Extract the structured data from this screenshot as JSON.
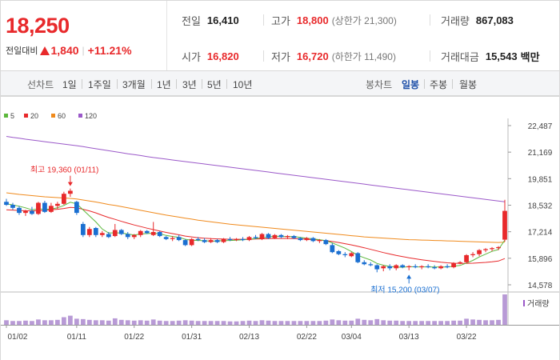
{
  "quote": {
    "current_price": "18,250",
    "change_label": "전일대비",
    "change_amount": "1,840",
    "change_percent": "+11.21%",
    "color_up": "#e8292b",
    "color_down": "#1a6fd1"
  },
  "stats": {
    "prev_close": {
      "label": "전일",
      "value": "16,410"
    },
    "high": {
      "label": "고가",
      "value": "18,800",
      "sub_label": "(상한가",
      "sub_value": "21,300)"
    },
    "volume": {
      "label": "거래량",
      "value": "867,083"
    },
    "open": {
      "label": "시가",
      "value": "16,820"
    },
    "low": {
      "label": "저가",
      "value": "16,720",
      "sub_label": "(하한가",
      "sub_value": "11,490)"
    },
    "turnover": {
      "label": "거래대금",
      "value": "15,543",
      "unit": "백만"
    }
  },
  "period_tabs": {
    "header": "선차트",
    "items": [
      "1일",
      "1주일",
      "3개월",
      "1년",
      "3년",
      "5년",
      "10년"
    ]
  },
  "candle_tabs": {
    "header": "봉차트",
    "items": [
      "일봉",
      "주봉",
      "월봉"
    ],
    "active": "일봉"
  },
  "chart_data": {
    "type": "candlestick",
    "title": "",
    "legend": [
      {
        "name": "5",
        "color": "#5cb83c"
      },
      {
        "name": "20",
        "color": "#e8292b"
      },
      {
        "name": "60",
        "color": "#f08a1c"
      },
      {
        "name": "120",
        "color": "#9b59c9"
      }
    ],
    "y_ticks": [
      "22,487",
      "21,169",
      "19,851",
      "18,532",
      "17,214",
      "15,896",
      "14,578"
    ],
    "ylim": [
      14578,
      22487
    ],
    "x_ticks": [
      "01/02",
      "01/11",
      "01/22",
      "01/31",
      "02/13",
      "02/22",
      "03/04",
      "03/13",
      "03/22"
    ],
    "volume_label": "거래량",
    "annotations": {
      "high": {
        "text": "최고 19,360 (01/11)",
        "value": 19360,
        "index": 10
      },
      "low": {
        "text": "최저 15,200 (03/07)",
        "value": 15200,
        "index": 63
      }
    },
    "candles": [
      {
        "o": 18700,
        "h": 18850,
        "l": 18500,
        "c": 18550
      },
      {
        "o": 18550,
        "h": 18650,
        "l": 18300,
        "c": 18400
      },
      {
        "o": 18400,
        "h": 18500,
        "l": 18050,
        "c": 18150
      },
      {
        "o": 18150,
        "h": 18300,
        "l": 18000,
        "c": 18250
      },
      {
        "o": 18250,
        "h": 18450,
        "l": 18050,
        "c": 18100
      },
      {
        "o": 18100,
        "h": 18700,
        "l": 18050,
        "c": 18650
      },
      {
        "o": 18650,
        "h": 18750,
        "l": 18150,
        "c": 18200
      },
      {
        "o": 18200,
        "h": 18650,
        "l": 18150,
        "c": 18500
      },
      {
        "o": 18500,
        "h": 18700,
        "l": 18350,
        "c": 18600
      },
      {
        "o": 18600,
        "h": 19200,
        "l": 18550,
        "c": 19100
      },
      {
        "o": 19100,
        "h": 19360,
        "l": 18950,
        "c": 19250
      },
      {
        "o": 18700,
        "h": 18750,
        "l": 18050,
        "c": 18150
      },
      {
        "o": 17600,
        "h": 17700,
        "l": 16950,
        "c": 17050
      },
      {
        "o": 17050,
        "h": 17450,
        "l": 16950,
        "c": 17350
      },
      {
        "o": 17400,
        "h": 17450,
        "l": 16950,
        "c": 17050
      },
      {
        "o": 17050,
        "h": 17250,
        "l": 16950,
        "c": 17150
      },
      {
        "o": 17100,
        "h": 17200,
        "l": 16900,
        "c": 16950
      },
      {
        "o": 17000,
        "h": 17600,
        "l": 16950,
        "c": 17300
      },
      {
        "o": 17300,
        "h": 17350,
        "l": 17050,
        "c": 17100
      },
      {
        "o": 17100,
        "h": 17200,
        "l": 16850,
        "c": 16950
      },
      {
        "o": 16950,
        "h": 17100,
        "l": 16850,
        "c": 17050
      },
      {
        "o": 17050,
        "h": 17300,
        "l": 16950,
        "c": 17250
      },
      {
        "o": 17250,
        "h": 17300,
        "l": 17100,
        "c": 17150
      },
      {
        "o": 17050,
        "h": 17700,
        "l": 17000,
        "c": 17200
      },
      {
        "o": 17200,
        "h": 17250,
        "l": 16950,
        "c": 17000
      },
      {
        "o": 16950,
        "h": 17000,
        "l": 16800,
        "c": 16850
      },
      {
        "o": 16850,
        "h": 17000,
        "l": 16750,
        "c": 16900
      },
      {
        "o": 16950,
        "h": 17050,
        "l": 16750,
        "c": 16800
      },
      {
        "o": 16800,
        "h": 16850,
        "l": 16500,
        "c": 16550
      },
      {
        "o": 16550,
        "h": 16900,
        "l": 16500,
        "c": 16850
      },
      {
        "o": 16850,
        "h": 16950,
        "l": 16750,
        "c": 16800
      },
      {
        "o": 16800,
        "h": 16900,
        "l": 16650,
        "c": 16700
      },
      {
        "o": 16700,
        "h": 16900,
        "l": 16650,
        "c": 16800
      },
      {
        "o": 16800,
        "h": 16850,
        "l": 16650,
        "c": 16700
      },
      {
        "o": 16700,
        "h": 16900,
        "l": 16650,
        "c": 16850
      },
      {
        "o": 16850,
        "h": 16950,
        "l": 16750,
        "c": 16800
      },
      {
        "o": 16800,
        "h": 16900,
        "l": 16750,
        "c": 16850
      },
      {
        "o": 16850,
        "h": 16950,
        "l": 16750,
        "c": 16800
      },
      {
        "o": 16800,
        "h": 17000,
        "l": 16750,
        "c": 16950
      },
      {
        "o": 16950,
        "h": 17050,
        "l": 16850,
        "c": 16900
      },
      {
        "o": 16850,
        "h": 17150,
        "l": 16800,
        "c": 17100
      },
      {
        "o": 17100,
        "h": 17150,
        "l": 16850,
        "c": 16900
      },
      {
        "o": 16900,
        "h": 17100,
        "l": 16850,
        "c": 17050
      },
      {
        "o": 17050,
        "h": 17100,
        "l": 16900,
        "c": 16950
      },
      {
        "o": 16950,
        "h": 17050,
        "l": 16850,
        "c": 17000
      },
      {
        "o": 17000,
        "h": 17050,
        "l": 16850,
        "c": 16900
      },
      {
        "o": 16900,
        "h": 16950,
        "l": 16750,
        "c": 16800
      },
      {
        "o": 16800,
        "h": 16950,
        "l": 16750,
        "c": 16900
      },
      {
        "o": 16900,
        "h": 16950,
        "l": 16700,
        "c": 16750
      },
      {
        "o": 16750,
        "h": 16850,
        "l": 16650,
        "c": 16800
      },
      {
        "o": 16800,
        "h": 16850,
        "l": 16550,
        "c": 16600
      },
      {
        "o": 16550,
        "h": 16650,
        "l": 16150,
        "c": 16200
      },
      {
        "o": 16250,
        "h": 16300,
        "l": 16050,
        "c": 16100
      },
      {
        "o": 16100,
        "h": 16200,
        "l": 15950,
        "c": 16050
      },
      {
        "o": 16000,
        "h": 16200,
        "l": 15950,
        "c": 16150
      },
      {
        "o": 16150,
        "h": 16200,
        "l": 15650,
        "c": 15700
      },
      {
        "o": 15700,
        "h": 15800,
        "l": 15550,
        "c": 15600
      },
      {
        "o": 15600,
        "h": 15700,
        "l": 15500,
        "c": 15550
      },
      {
        "o": 15550,
        "h": 15600,
        "l": 15200,
        "c": 15350
      },
      {
        "o": 15400,
        "h": 15550,
        "l": 15250,
        "c": 15500
      },
      {
        "o": 15500,
        "h": 15600,
        "l": 15300,
        "c": 15400
      },
      {
        "o": 15400,
        "h": 15600,
        "l": 15300,
        "c": 15550
      },
      {
        "o": 15550,
        "h": 15600,
        "l": 15400,
        "c": 15450
      },
      {
        "o": 15450,
        "h": 15550,
        "l": 15300,
        "c": 15500
      },
      {
        "o": 15500,
        "h": 15600,
        "l": 15400,
        "c": 15450
      },
      {
        "o": 15450,
        "h": 15550,
        "l": 15350,
        "c": 15500
      },
      {
        "o": 15500,
        "h": 15600,
        "l": 15400,
        "c": 15450
      },
      {
        "o": 15450,
        "h": 15550,
        "l": 15350,
        "c": 15400
      },
      {
        "o": 15400,
        "h": 15550,
        "l": 15350,
        "c": 15500
      },
      {
        "o": 15500,
        "h": 15600,
        "l": 15400,
        "c": 15450
      },
      {
        "o": 15450,
        "h": 15700,
        "l": 15400,
        "c": 15650
      },
      {
        "o": 15650,
        "h": 15750,
        "l": 15600,
        "c": 15700
      },
      {
        "o": 15700,
        "h": 16100,
        "l": 15650,
        "c": 16050
      },
      {
        "o": 16050,
        "h": 16200,
        "l": 15950,
        "c": 16100
      },
      {
        "o": 16100,
        "h": 16350,
        "l": 16000,
        "c": 16300
      },
      {
        "o": 16300,
        "h": 16400,
        "l": 16200,
        "c": 16350
      },
      {
        "o": 16350,
        "h": 16450,
        "l": 16250,
        "c": 16400
      },
      {
        "o": 16400,
        "h": 16500,
        "l": 16300,
        "c": 16450
      },
      {
        "o": 16820,
        "h": 18800,
        "l": 16720,
        "c": 18250
      }
    ],
    "ma5": [
      18600,
      18550,
      18480,
      18400,
      18300,
      18350,
      18330,
      18340,
      18400,
      18520,
      18680,
      18600,
      18300,
      18000,
      17700,
      17350,
      17150,
      17160,
      17150,
      17100,
      17050,
      17100,
      17120,
      17140,
      17110,
      17030,
      16980,
      16940,
      16840,
      16790,
      16780,
      16770,
      16740,
      16760,
      16770,
      16780,
      16790,
      16810,
      16840,
      16870,
      16920,
      16950,
      16990,
      16980,
      16970,
      16980,
      16930,
      16890,
      16860,
      16820,
      16770,
      16660,
      16530,
      16400,
      16230,
      16040,
      15920,
      15810,
      15640,
      15550,
      15490,
      15460,
      15450,
      15480,
      15470,
      15470,
      15470,
      15460,
      15460,
      15460,
      15500,
      15540,
      15660,
      15790,
      15960,
      16100,
      16240,
      16330,
      16800
    ],
    "ma20": [
      18300,
      18290,
      18270,
      18260,
      18250,
      18260,
      18270,
      18300,
      18330,
      18370,
      18420,
      18400,
      18330,
      18250,
      18150,
      18030,
      17920,
      17830,
      17730,
      17640,
      17550,
      17470,
      17390,
      17320,
      17250,
      17180,
      17120,
      17060,
      17000,
      16960,
      16920,
      16890,
      16870,
      16860,
      16850,
      16840,
      16840,
      16840,
      16840,
      16850,
      16860,
      16870,
      16880,
      16880,
      16880,
      16870,
      16860,
      16840,
      16820,
      16800,
      16770,
      16730,
      16680,
      16620,
      16560,
      16490,
      16420,
      16340,
      16260,
      16180,
      16110,
      16040,
      15980,
      15920,
      15870,
      15820,
      15780,
      15740,
      15700,
      15670,
      15650,
      15640,
      15640,
      15650,
      15670,
      15690,
      15720,
      15760,
      15880
    ],
    "ma60": [
      19150,
      19110,
      19070,
      19040,
      19010,
      18980,
      18950,
      18930,
      18910,
      18890,
      18870,
      18840,
      18790,
      18740,
      18690,
      18630,
      18570,
      18520,
      18460,
      18400,
      18340,
      18280,
      18220,
      18160,
      18100,
      18040,
      17990,
      17940,
      17890,
      17840,
      17790,
      17750,
      17710,
      17670,
      17630,
      17590,
      17560,
      17530,
      17500,
      17470,
      17440,
      17410,
      17380,
      17350,
      17320,
      17290,
      17260,
      17230,
      17200,
      17170,
      17140,
      17110,
      17080,
      17050,
      17020,
      16990,
      16960,
      16940,
      16920,
      16900,
      16880,
      16860,
      16840,
      16820,
      16810,
      16800,
      16790,
      16780,
      16770,
      16760,
      16750,
      16740,
      16730,
      16720,
      16710,
      16700,
      16690,
      16680,
      16700
    ],
    "ma120": [
      21950,
      21900,
      21860,
      21810,
      21770,
      21730,
      21690,
      21650,
      21610,
      21570,
      21530,
      21490,
      21440,
      21390,
      21340,
      21290,
      21240,
      21190,
      21140,
      21090,
      21050,
      21000,
      20950,
      20900,
      20860,
      20820,
      20780,
      20740,
      20700,
      20660,
      20620,
      20580,
      20540,
      20500,
      20460,
      20420,
      20380,
      20340,
      20300,
      20260,
      20220,
      20180,
      20140,
      20100,
      20060,
      20020,
      19980,
      19940,
      19900,
      19860,
      19820,
      19780,
      19740,
      19700,
      19660,
      19620,
      19580,
      19540,
      19500,
      19460,
      19420,
      19380,
      19340,
      19300,
      19260,
      19220,
      19180,
      19140,
      19100,
      19060,
      19020,
      18980,
      18940,
      18900,
      18860,
      18820,
      18780,
      18740,
      18700
    ],
    "volumes": [
      1.2,
      1.0,
      1.0,
      1.1,
      1.0,
      1.4,
      1.2,
      1.2,
      1.3,
      2.0,
      2.4,
      1.6,
      1.5,
      1.3,
      1.2,
      1.2,
      1.1,
      1.7,
      1.3,
      1.2,
      1.1,
      1.2,
      1.1,
      1.4,
      1.1,
      1.0,
      1.0,
      1.1,
      1.2,
      1.1,
      1.0,
      1.0,
      1.0,
      1.0,
      1.0,
      0.9,
      0.9,
      1.0,
      1.1,
      1.0,
      1.2,
      1.1,
      1.0,
      1.0,
      1.0,
      1.0,
      1.0,
      1.0,
      1.0,
      1.0,
      1.1,
      1.4,
      1.2,
      1.1,
      1.1,
      1.6,
      1.3,
      1.2,
      1.5,
      1.2,
      1.1,
      1.1,
      1.0,
      1.0,
      1.0,
      1.0,
      1.0,
      1.0,
      1.0,
      1.0,
      1.1,
      1.1,
      1.6,
      1.4,
      1.3,
      1.2,
      1.2,
      1.3,
      8.0
    ],
    "x_tick_index": [
      0,
      11,
      20,
      29,
      38,
      47,
      54,
      63,
      72
    ]
  }
}
